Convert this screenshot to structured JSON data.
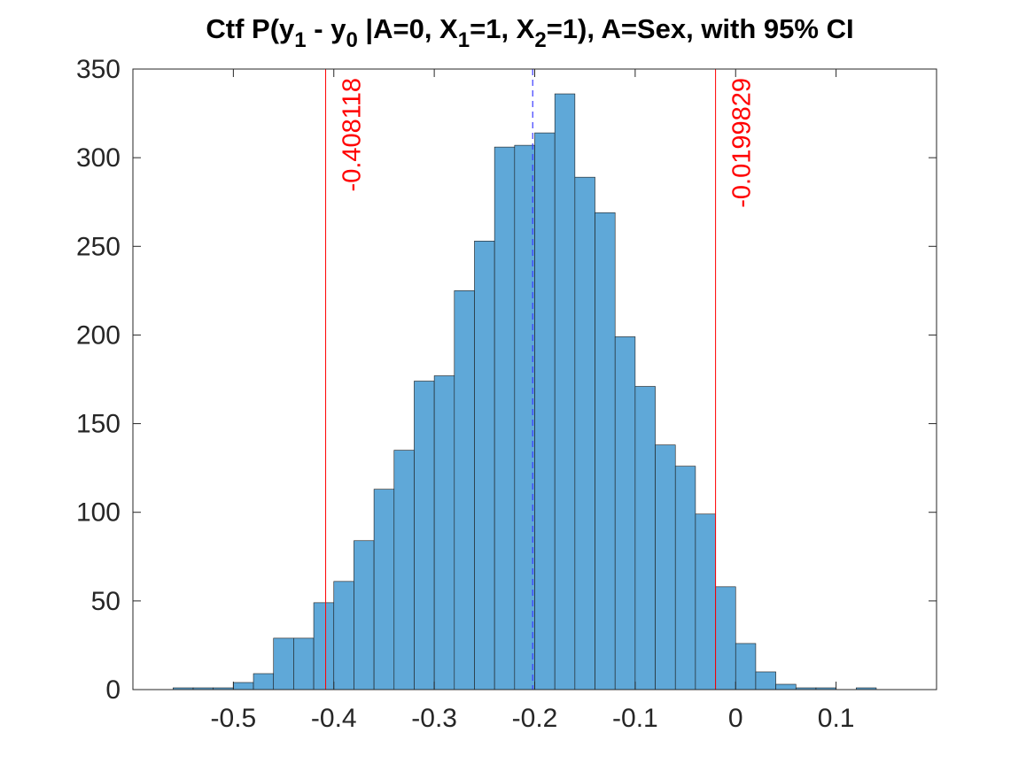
{
  "chart_data": {
    "type": "bar",
    "title_parts": {
      "prefix": "Ctf P(y",
      "sub1": "1",
      "mid1": " - y",
      "sub2": "0",
      "mid2": " |A=0, X",
      "sub3": "1",
      "mid3": "=1, X",
      "sub4": "2",
      "suffix": "=1), A=Sex, with 95% CI"
    },
    "xlabel": "",
    "ylabel": "",
    "xlim": [
      -0.6,
      0.2
    ],
    "ylim": [
      0,
      350
    ],
    "xticks": [
      -0.5,
      -0.4,
      -0.3,
      -0.2,
      -0.1,
      0,
      0.1
    ],
    "xtick_labels": [
      "-0.5",
      "-0.4",
      "-0.3",
      "-0.2",
      "-0.1",
      "0",
      "0.1"
    ],
    "yticks": [
      0,
      50,
      100,
      150,
      200,
      250,
      300,
      350
    ],
    "ytick_labels": [
      "0",
      "50",
      "100",
      "150",
      "200",
      "250",
      "300",
      "350"
    ],
    "bin_start": -0.56,
    "bin_width": 0.02,
    "counts": [
      1,
      1,
      1,
      4,
      9,
      29,
      29,
      49,
      61,
      84,
      113,
      135,
      174,
      177,
      225,
      253,
      306,
      307,
      314,
      336,
      289,
      269,
      199,
      171,
      138,
      126,
      99,
      58,
      26,
      10,
      3,
      1,
      1,
      0,
      1
    ],
    "bar_color": "#5fa8d8",
    "ci_lower": -0.408118,
    "ci_upper": -0.0199829,
    "ci_lower_label": "-0.408118",
    "ci_upper_label": "-0.0199829",
    "ci_color": "#ff0000",
    "mean": -0.202,
    "mean_color": "#3b3bff",
    "grid": false
  }
}
